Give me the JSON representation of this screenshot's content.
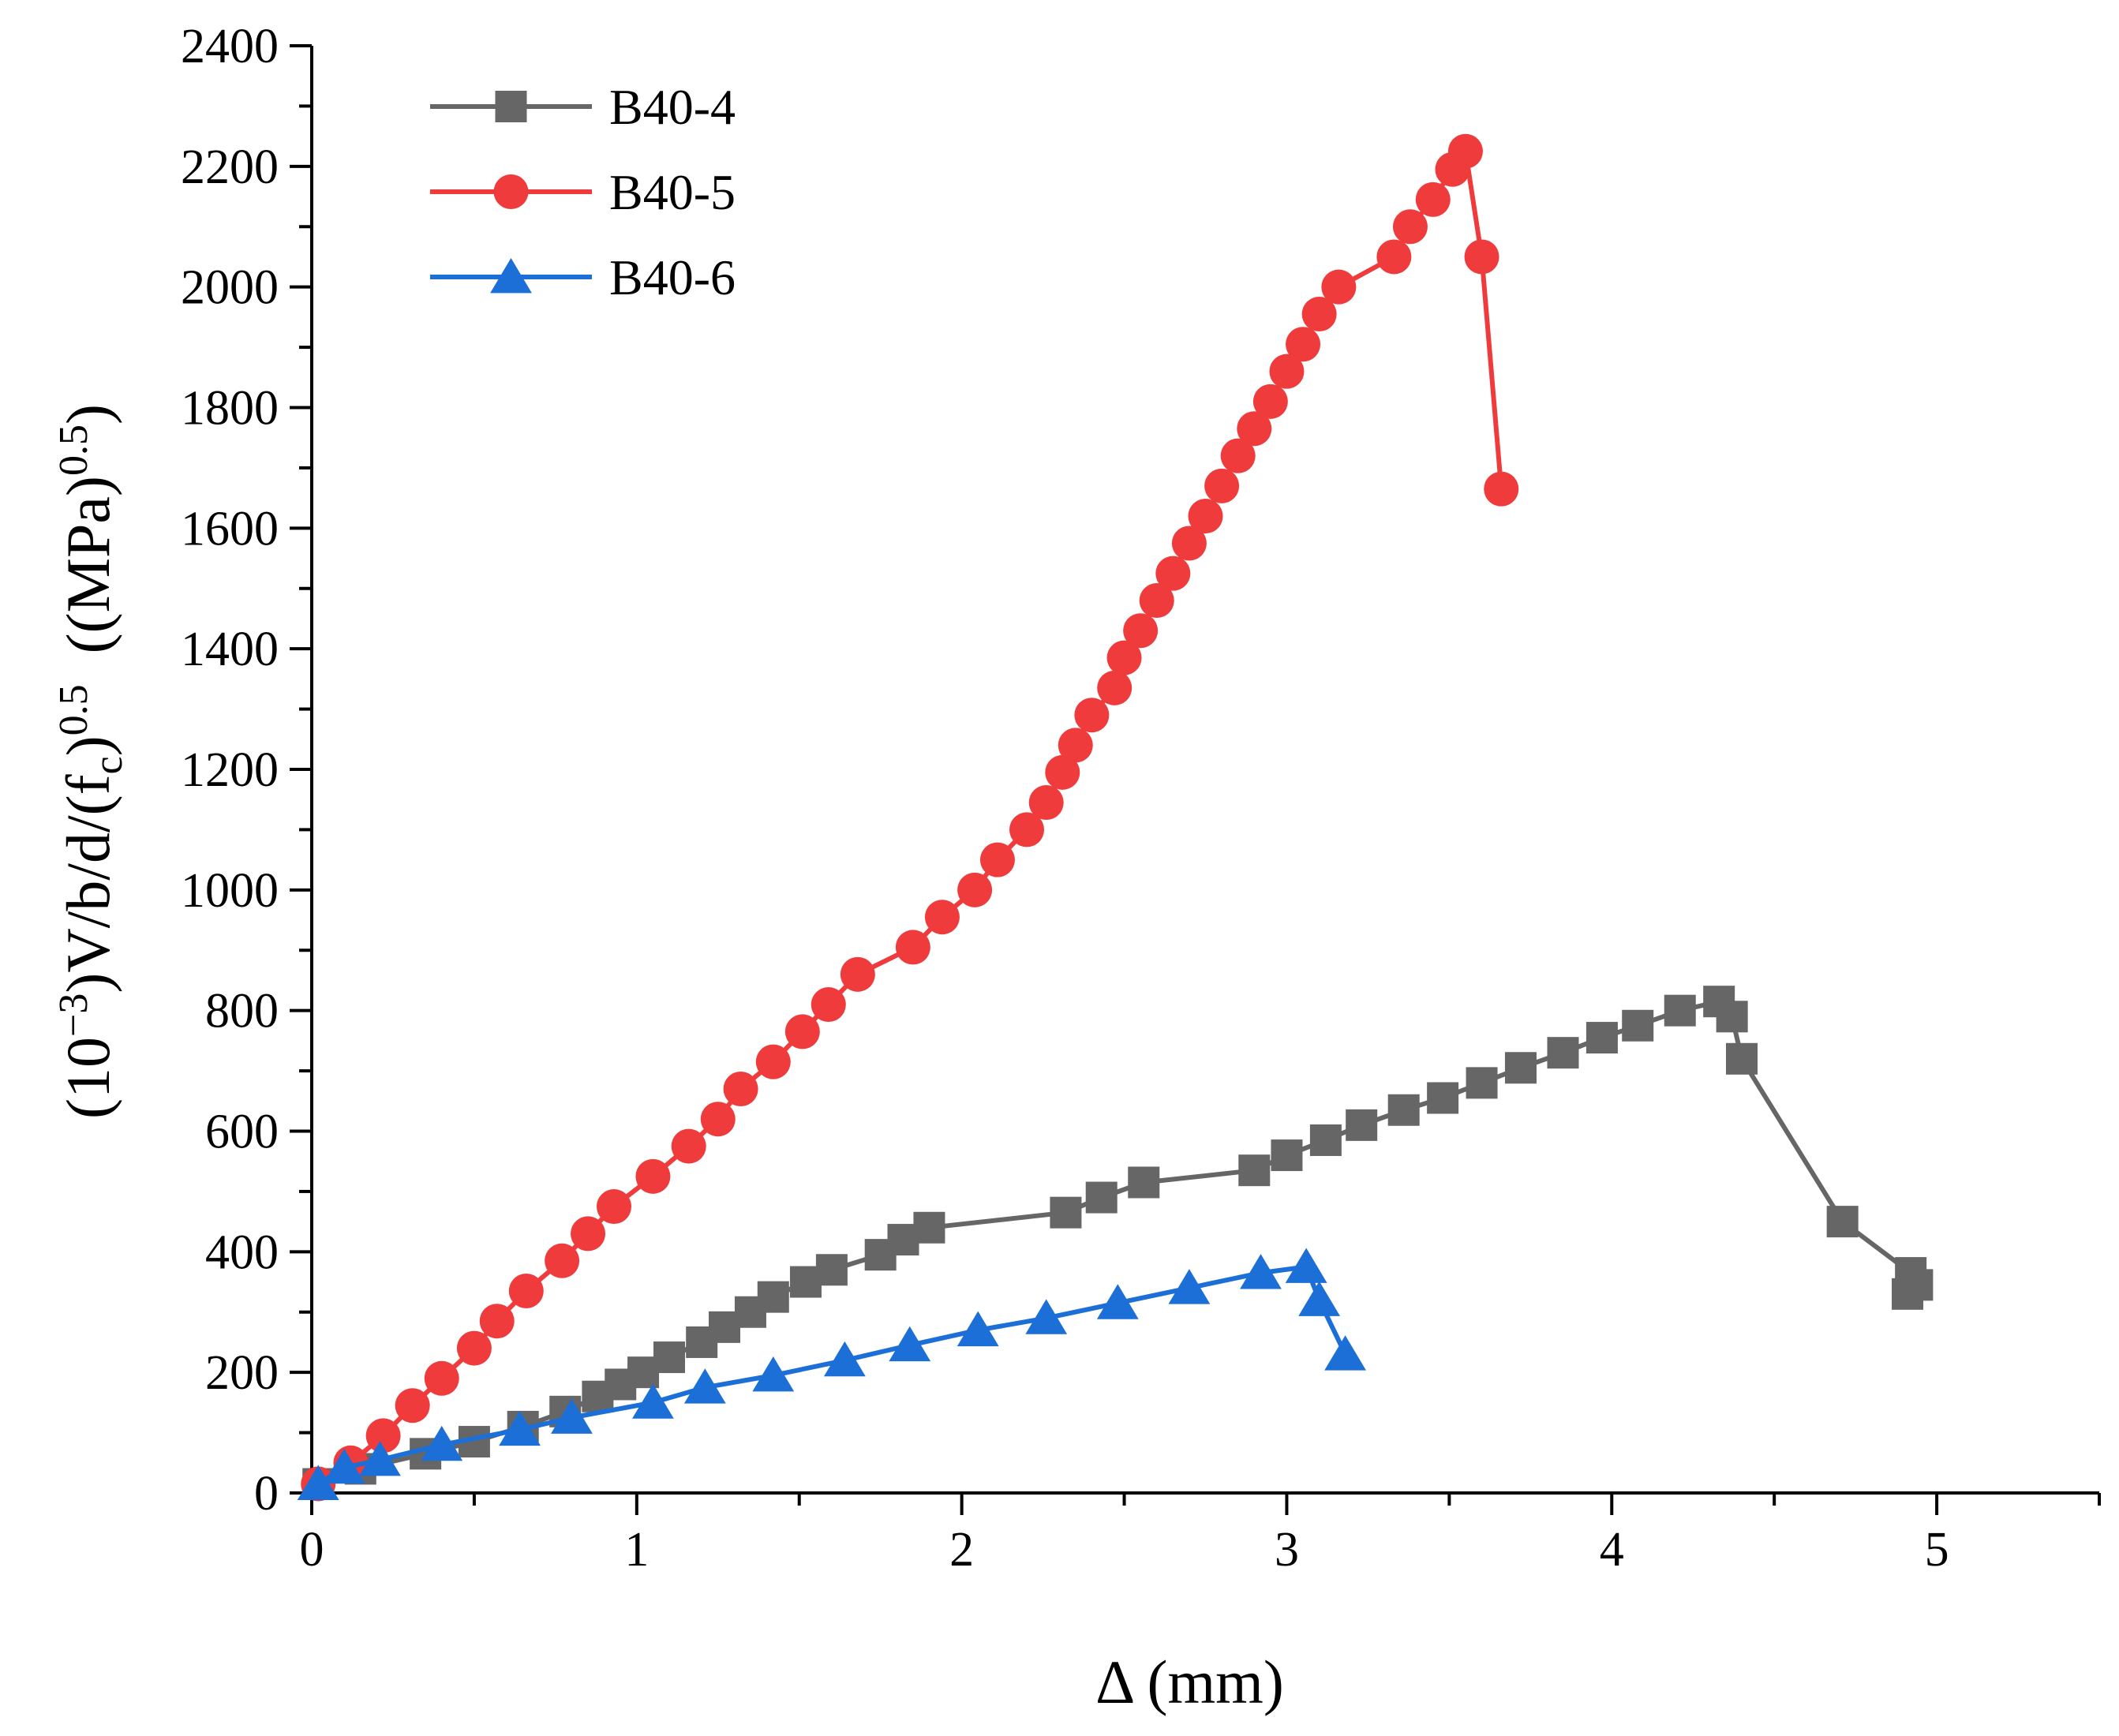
{
  "chart_data": {
    "type": "line",
    "xlabel": "Δ (mm)",
    "ylabel": {
      "prefix": "(10",
      "exp1": "−3",
      "mid": ")V/b/d/(f",
      "sub": "c",
      "close": ")",
      "exp2": "0.5",
      "units_open": "  ((MPa)",
      "exp3": "0.5",
      "units_close": ")"
    },
    "xlim": [
      0,
      5.5
    ],
    "ylim": [
      0,
      2400
    ],
    "x_ticks": [
      0,
      1,
      2,
      3,
      4,
      5
    ],
    "y_ticks": [
      0,
      200,
      400,
      600,
      800,
      1000,
      1200,
      1400,
      1600,
      1800,
      2000,
      2200,
      2400
    ],
    "legend_position": "top-left",
    "grid": false,
    "series": [
      {
        "name": "B40-4",
        "color": "#666666",
        "marker": "square",
        "points": [
          [
            0.02,
            15
          ],
          [
            0.15,
            40
          ],
          [
            0.35,
            65
          ],
          [
            0.5,
            85
          ],
          [
            0.65,
            110
          ],
          [
            0.78,
            135
          ],
          [
            0.88,
            160
          ],
          [
            0.95,
            180
          ],
          [
            1.02,
            200
          ],
          [
            1.1,
            225
          ],
          [
            1.2,
            250
          ],
          [
            1.27,
            275
          ],
          [
            1.35,
            300
          ],
          [
            1.42,
            325
          ],
          [
            1.52,
            350
          ],
          [
            1.6,
            370
          ],
          [
            1.75,
            395
          ],
          [
            1.82,
            420
          ],
          [
            1.9,
            440
          ],
          [
            2.32,
            465
          ],
          [
            2.43,
            490
          ],
          [
            2.56,
            515
          ],
          [
            2.9,
            535
          ],
          [
            3.0,
            560
          ],
          [
            3.12,
            585
          ],
          [
            3.23,
            610
          ],
          [
            3.36,
            635
          ],
          [
            3.48,
            655
          ],
          [
            3.6,
            680
          ],
          [
            3.72,
            705
          ],
          [
            3.85,
            730
          ],
          [
            3.97,
            755
          ],
          [
            4.08,
            775
          ],
          [
            4.21,
            800
          ],
          [
            4.33,
            815
          ],
          [
            4.37,
            790
          ],
          [
            4.4,
            720
          ],
          [
            4.71,
            450
          ],
          [
            4.92,
            365
          ],
          [
            4.94,
            345
          ],
          [
            4.91,
            330
          ]
        ]
      },
      {
        "name": "B40-5",
        "color": "#ef3b3b",
        "marker": "circle",
        "points": [
          [
            0.02,
            15
          ],
          [
            0.12,
            50
          ],
          [
            0.22,
            95
          ],
          [
            0.31,
            145
          ],
          [
            0.4,
            190
          ],
          [
            0.5,
            240
          ],
          [
            0.57,
            285
          ],
          [
            0.66,
            335
          ],
          [
            0.77,
            385
          ],
          [
            0.85,
            430
          ],
          [
            0.93,
            475
          ],
          [
            1.05,
            525
          ],
          [
            1.16,
            575
          ],
          [
            1.25,
            620
          ],
          [
            1.32,
            670
          ],
          [
            1.42,
            715
          ],
          [
            1.51,
            765
          ],
          [
            1.59,
            810
          ],
          [
            1.68,
            860
          ],
          [
            1.85,
            905
          ],
          [
            1.94,
            955
          ],
          [
            2.04,
            1000
          ],
          [
            2.11,
            1050
          ],
          [
            2.2,
            1100
          ],
          [
            2.26,
            1145
          ],
          [
            2.31,
            1195
          ],
          [
            2.35,
            1240
          ],
          [
            2.4,
            1290
          ],
          [
            2.47,
            1335
          ],
          [
            2.5,
            1385
          ],
          [
            2.55,
            1430
          ],
          [
            2.6,
            1480
          ],
          [
            2.65,
            1525
          ],
          [
            2.7,
            1575
          ],
          [
            2.75,
            1620
          ],
          [
            2.8,
            1670
          ],
          [
            2.85,
            1720
          ],
          [
            2.9,
            1765
          ],
          [
            2.95,
            1810
          ],
          [
            3.0,
            1860
          ],
          [
            3.05,
            1905
          ],
          [
            3.1,
            1955
          ],
          [
            3.16,
            2000
          ],
          [
            3.33,
            2050
          ],
          [
            3.38,
            2100
          ],
          [
            3.45,
            2145
          ],
          [
            3.51,
            2195
          ],
          [
            3.55,
            2225
          ],
          [
            3.6,
            2050
          ],
          [
            3.66,
            1665
          ]
        ]
      },
      {
        "name": "B40-6",
        "color": "#1c6fd6",
        "marker": "triangle",
        "points": [
          [
            0.02,
            15
          ],
          [
            0.1,
            42
          ],
          [
            0.21,
            55
          ],
          [
            0.4,
            80
          ],
          [
            0.64,
            105
          ],
          [
            0.8,
            125
          ],
          [
            1.05,
            150
          ],
          [
            1.21,
            175
          ],
          [
            1.42,
            195
          ],
          [
            1.64,
            220
          ],
          [
            1.84,
            245
          ],
          [
            2.05,
            270
          ],
          [
            2.26,
            290
          ],
          [
            2.48,
            315
          ],
          [
            2.7,
            340
          ],
          [
            2.92,
            365
          ],
          [
            3.06,
            375
          ],
          [
            3.1,
            320
          ],
          [
            3.18,
            230
          ]
        ]
      }
    ]
  }
}
